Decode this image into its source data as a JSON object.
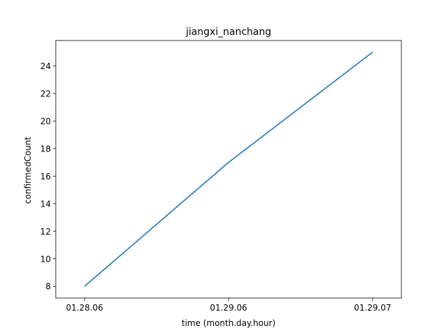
{
  "chart_data": {
    "type": "line",
    "title": "jiangxi_nanchang",
    "xlabel": "time (month.day.hour)",
    "ylabel": "confirmedCount",
    "categories": [
      "01.28.06",
      "01.29.06",
      "01.29.07"
    ],
    "series": [
      {
        "values": [
          8,
          17,
          25
        ],
        "color": "#1f77b4"
      }
    ],
    "ylim": [
      7.15,
      25.85
    ],
    "yticks": [
      8,
      10,
      12,
      14,
      16,
      18,
      20,
      22,
      24
    ],
    "grid": false,
    "legend": "none"
  }
}
